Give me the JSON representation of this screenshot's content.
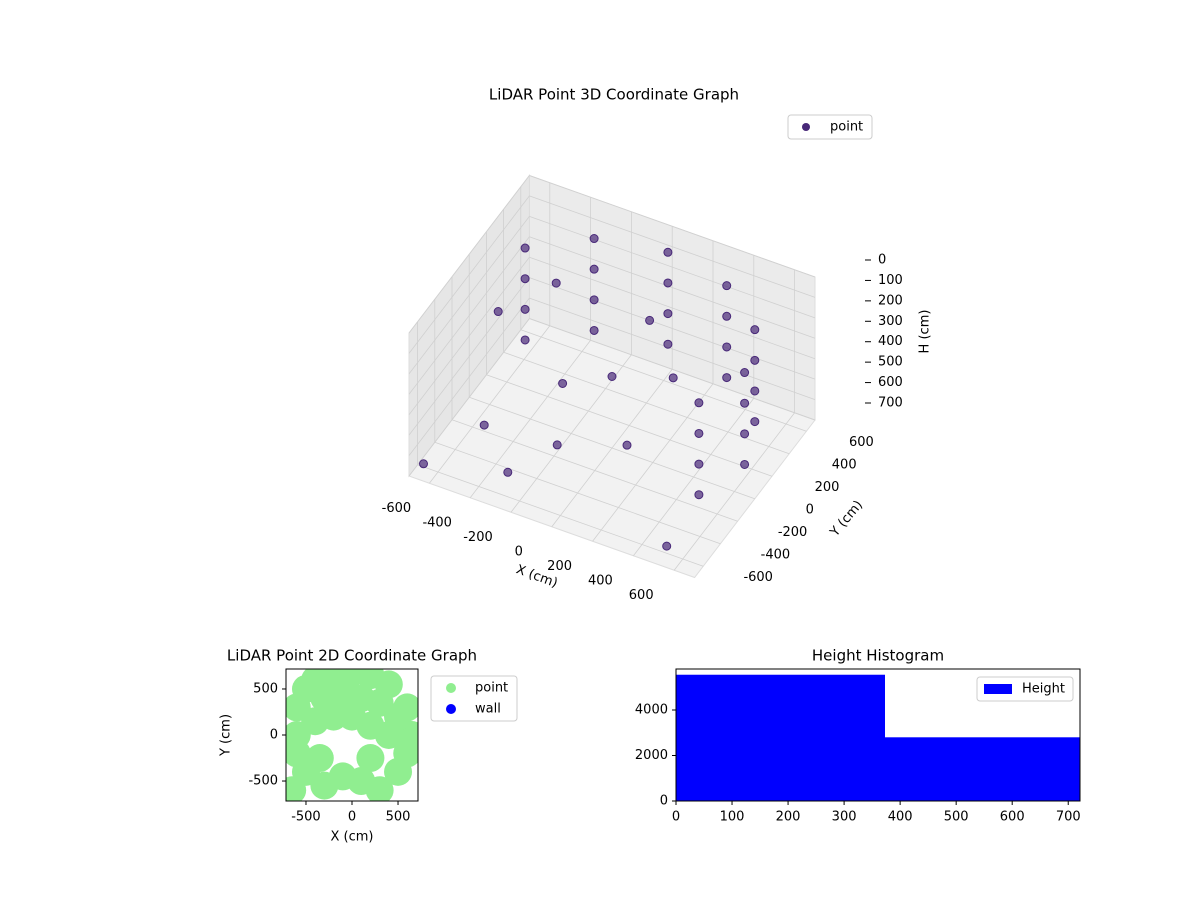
{
  "chart_data": [
    {
      "type": "scatter3d",
      "title": "LiDAR Point 3D Coordinate Graph",
      "xlabel": "X (cm)",
      "ylabel": "Y (cm)",
      "zlabel": "H (cm)",
      "xlim": [
        -700,
        700
      ],
      "ylim": [
        -700,
        700
      ],
      "zlim": [
        0,
        700
      ],
      "z_inverted": true,
      "xticks": [
        -600,
        -400,
        -200,
        0,
        200,
        400,
        600
      ],
      "yticks": [
        -600,
        -400,
        -200,
        0,
        200,
        400,
        600
      ],
      "zticks": [
        0,
        100,
        200,
        300,
        400,
        500,
        600,
        700
      ],
      "legend": "upper right",
      "series": [
        {
          "name": "point",
          "color": "#482878",
          "x": [
            0,
            0,
            0,
            0,
            325,
            325,
            325,
            325,
            563,
            563,
            563,
            563,
            650,
            650,
            650,
            650,
            563,
            563,
            563,
            563,
            -325,
            -325,
            -325,
            -325,
            -563,
            -563,
            -563,
            -563,
            -500,
            -300,
            -100,
            200,
            -600,
            -400,
            0,
            100,
            300,
            -200,
            500,
            -650
          ],
          "y": [
            650,
            650,
            650,
            650,
            563,
            563,
            563,
            563,
            325,
            325,
            325,
            325,
            0,
            0,
            0,
            0,
            -325,
            -325,
            -325,
            -325,
            563,
            563,
            563,
            563,
            325,
            325,
            325,
            325,
            -300,
            -500,
            -400,
            -300,
            100,
            300,
            0,
            200,
            0,
            -100,
            -550,
            -650
          ],
          "z": [
            100,
            250,
            400,
            550,
            100,
            250,
            400,
            550,
            100,
            250,
            400,
            550,
            100,
            250,
            400,
            550,
            100,
            250,
            400,
            550,
            100,
            250,
            400,
            550,
            100,
            250,
            400,
            550,
            600,
            650,
            500,
            450,
            300,
            200,
            350,
            150,
            250,
            400,
            700,
            650
          ]
        }
      ]
    },
    {
      "type": "scatter",
      "title": "LiDAR Point 2D Coordinate Graph",
      "xlabel": "X (cm)",
      "ylabel": "Y (cm)",
      "xlim": [
        -717,
        717
      ],
      "ylim": [
        -717,
        717
      ],
      "xticks": [
        -500,
        0,
        500
      ],
      "yticks": [
        -500,
        0,
        500
      ],
      "legend": "outside right",
      "series": [
        {
          "name": "point",
          "color": "#90ee90",
          "x": [
            -400,
            -200,
            0,
            200,
            400,
            600,
            650,
            600,
            -600,
            -500,
            -300,
            -100,
            100,
            300,
            500,
            400,
            200,
            0,
            -200,
            -400,
            -600,
            -500,
            -300,
            -100,
            100,
            300,
            500,
            200,
            -350,
            -650,
            -600
          ],
          "y": [
            600,
            650,
            680,
            650,
            550,
            300,
            0,
            -200,
            300,
            500,
            400,
            450,
            400,
            350,
            200,
            0,
            100,
            200,
            200,
            150,
            -200,
            -400,
            -550,
            -450,
            -500,
            -600,
            -400,
            -250,
            -250,
            -600,
            0
          ]
        },
        {
          "name": "wall",
          "color": "#0000ff",
          "x": [],
          "y": []
        }
      ]
    },
    {
      "type": "histogram",
      "title": "Height Histogram",
      "bins": [
        0,
        373,
        721
      ],
      "values": [
        5550,
        2800
      ],
      "color": "#0000ff",
      "name": "Height",
      "xlim": [
        0,
        721
      ],
      "ylim": [
        0,
        5802
      ],
      "xticks": [
        0,
        100,
        200,
        300,
        400,
        500,
        600,
        700
      ],
      "yticks": [
        0,
        2000,
        4000
      ],
      "legend": "upper right"
    }
  ]
}
